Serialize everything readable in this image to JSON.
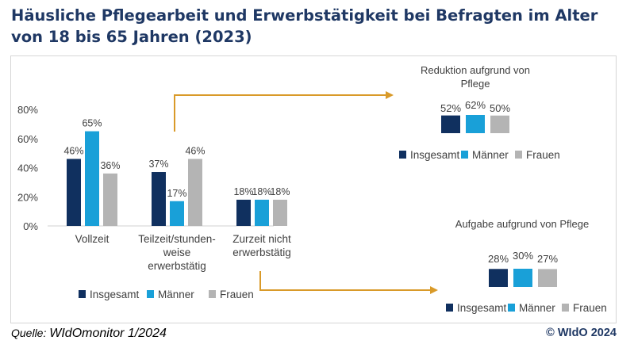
{
  "title": "Häusliche Pflegearbeit und Erwerbstätigkeit bei Befragten im Alter von 18 bis 65 Jahren (2023)",
  "footer": {
    "source_label": "Quelle:",
    "source": "WIdOmonitor 1/2024",
    "copyright": "© WIdO 2024"
  },
  "colors": {
    "insgesamt": "#10305f",
    "maenner": "#19a0d8",
    "frauen": "#b4b4b4",
    "arrow": "#d99a29"
  },
  "chart_data": [
    {
      "type": "bar",
      "title": "",
      "categories": [
        [
          "Vollzeit"
        ],
        [
          "Teilzeit/stunden-",
          "weise",
          "erwerbstätig"
        ],
        [
          "Zurzeit nicht",
          "erwerbstätig"
        ]
      ],
      "series": [
        {
          "name": "Insgesamt",
          "values": [
            46,
            37,
            18
          ]
        },
        {
          "name": "Männer",
          "values": [
            65,
            17,
            18
          ]
        },
        {
          "name": "Frauen",
          "values": [
            36,
            46,
            18
          ]
        }
      ],
      "ylim": [
        0,
        80
      ],
      "yticks": [
        "0%",
        "20%",
        "40%",
        "60%",
        "80%"
      ],
      "value_suffix": "%",
      "legend": "bottom"
    },
    {
      "type": "bar",
      "title": [
        "Reduktion aufgrund von",
        "Pflege"
      ],
      "categories": [
        ""
      ],
      "series": [
        {
          "name": "Insgesamt",
          "values": [
            52
          ]
        },
        {
          "name": "Männer",
          "values": [
            62
          ]
        },
        {
          "name": "Frauen",
          "values": [
            50
          ]
        }
      ],
      "value_suffix": "%",
      "legend": "bottom"
    },
    {
      "type": "bar",
      "title": [
        "Aufgabe aufgrund von Pflege"
      ],
      "categories": [
        ""
      ],
      "series": [
        {
          "name": "Insgesamt",
          "values": [
            28
          ]
        },
        {
          "name": "Männer",
          "values": [
            30
          ]
        },
        {
          "name": "Frauen",
          "values": [
            27
          ]
        }
      ],
      "value_suffix": "%",
      "legend": "bottom"
    }
  ]
}
